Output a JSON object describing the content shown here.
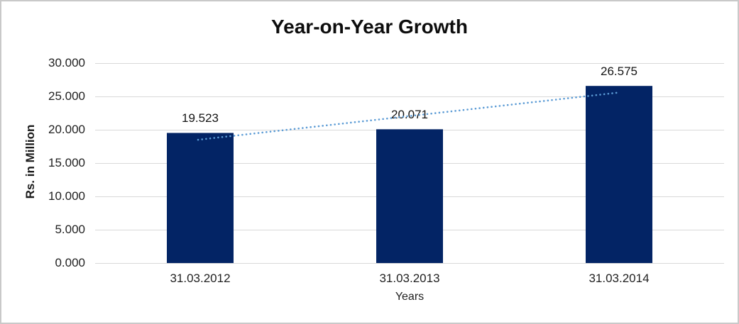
{
  "chart_data": {
    "type": "bar",
    "title": "Year-on-Year Growth",
    "xlabel": "Years",
    "ylabel": "Rs. in Million",
    "categories": [
      "31.03.2012",
      "31.03.2013",
      "31.03.2014"
    ],
    "values": [
      19523,
      20071,
      26575
    ],
    "data_labels": [
      "19.523",
      "20.071",
      "26.575"
    ],
    "y_tick_labels": [
      "0.000",
      "5.000",
      "10.000",
      "15.000",
      "20.000",
      "25.000",
      "30.000"
    ],
    "y_tick_values": [
      0,
      5000,
      10000,
      15000,
      20000,
      25000,
      30000
    ],
    "ylim": [
      0,
      30000
    ],
    "grid": true,
    "legend_position": "none",
    "bar_color": "#032465",
    "gridline_color": "#d9d9d9",
    "trendline": {
      "type": "linear",
      "style": "dotted",
      "color": "#5b9bd5"
    }
  }
}
